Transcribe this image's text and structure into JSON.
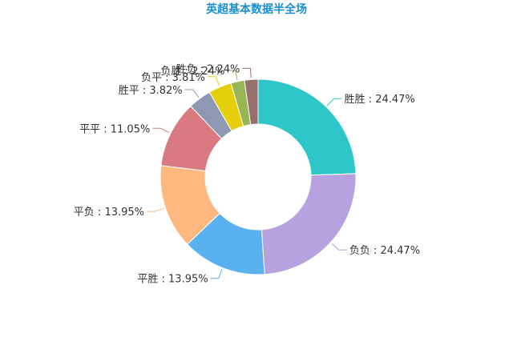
{
  "chart_data": {
    "type": "pie",
    "variant": "donut",
    "title": "英超基本数据半全场",
    "slices": [
      {
        "label": "胜胜",
        "value": 24.47,
        "display": "24.47%",
        "color": "#2ec7c9"
      },
      {
        "label": "负负",
        "value": 24.47,
        "display": "24.47%",
        "color": "#b6a2de"
      },
      {
        "label": "平胜",
        "value": 13.95,
        "display": "13.95%",
        "color": "#5ab1ef"
      },
      {
        "label": "平负",
        "value": 13.95,
        "display": "13.95%",
        "color": "#ffb980"
      },
      {
        "label": "平平",
        "value": 11.05,
        "display": "11.05%",
        "color": "#d87a80"
      },
      {
        "label": "胜平",
        "value": 3.82,
        "display": "3.82%",
        "color": "#8d98b3"
      },
      {
        "label": "负平",
        "value": 3.81,
        "display": "3.81%",
        "color": "#e5cf0d"
      },
      {
        "label": "负胜",
        "value": 2.24,
        "display": "2.24%",
        "color": "#97b552"
      },
      {
        "label": "胜负",
        "value": 2.24,
        "display": "2.24%",
        "color": "#95706d"
      }
    ],
    "label_separator": " : ",
    "legend": "none"
  }
}
